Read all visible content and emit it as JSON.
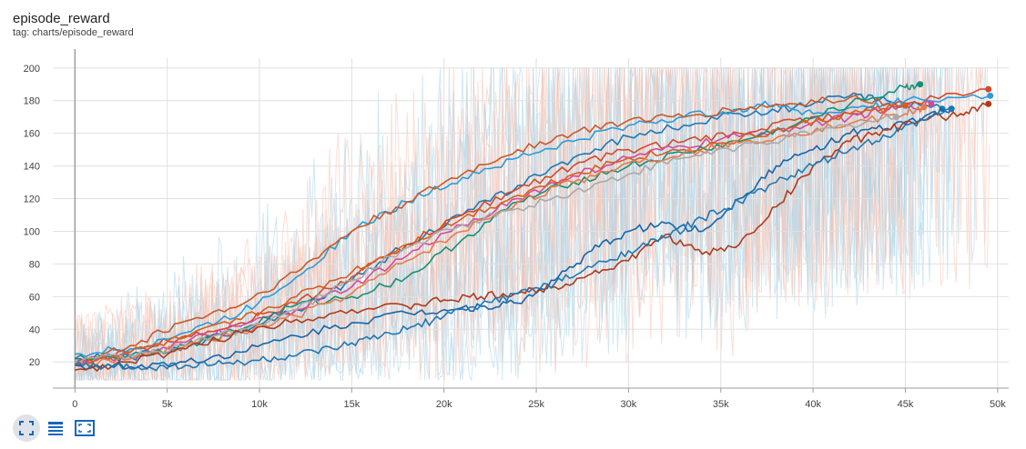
{
  "card": {
    "title": "episode_reward",
    "tag": "tag: charts/episode_reward"
  },
  "toolbar": {
    "buttons": [
      {
        "icon": "fit-domain-icon",
        "active": true
      },
      {
        "icon": "data-table-icon",
        "active": false
      },
      {
        "icon": "fullscreen-icon",
        "active": false
      }
    ]
  },
  "chart_data": {
    "type": "line",
    "title": "episode_reward",
    "xlabel": "",
    "ylabel": "",
    "xlim": [
      -1200,
      50600
    ],
    "ylim": [
      4,
      206
    ],
    "xticks": [
      0,
      5000,
      10000,
      15000,
      20000,
      25000,
      30000,
      35000,
      40000,
      45000,
      50000
    ],
    "xtick_labels": [
      "0",
      "5k",
      "10k",
      "15k",
      "20k",
      "25k",
      "30k",
      "35k",
      "40k",
      "45k",
      "50k"
    ],
    "yticks": [
      20,
      40,
      60,
      80,
      100,
      120,
      140,
      160,
      180,
      200
    ],
    "ytick_labels": [
      "20",
      "40",
      "60",
      "80",
      "100",
      "120",
      "140",
      "160",
      "180",
      "200"
    ],
    "grid": true,
    "legend": "none",
    "raw_band_colors": [
      "#f9c3b3",
      "#a9d6ea"
    ],
    "series": [
      {
        "color": "#1f77b4",
        "x": [
          0,
          3000,
          6000,
          9000,
          12000,
          15000,
          18000,
          21000,
          24000,
          27000,
          30000,
          33000,
          36000,
          39000,
          42000,
          44000,
          47000
        ],
        "y": [
          22,
          23,
          30,
          40,
          52,
          70,
          92,
          110,
          128,
          145,
          158,
          165,
          172,
          176,
          183,
          180,
          175
        ]
      },
      {
        "color": "#d2492b",
        "x": [
          0,
          3000,
          6000,
          9000,
          12000,
          15000,
          18000,
          21000,
          24000,
          27000,
          30000,
          33000,
          36000,
          39000,
          42000,
          45000,
          49500
        ],
        "y": [
          20,
          26,
          36,
          44,
          56,
          72,
          92,
          110,
          126,
          140,
          150,
          155,
          160,
          168,
          172,
          178,
          187
        ]
      },
      {
        "color": "#2b9cd8",
        "x": [
          0,
          3000,
          6000,
          9000,
          12000,
          15000,
          18000,
          21000,
          24000,
          27000,
          30000,
          33000,
          36000,
          38000,
          40000,
          43000,
          45000,
          49600
        ],
        "y": [
          25,
          28,
          38,
          50,
          72,
          100,
          118,
          133,
          145,
          155,
          165,
          170,
          175,
          178,
          172,
          176,
          180,
          183
        ]
      },
      {
        "color": "#c65a2c",
        "x": [
          0,
          3000,
          6000,
          9000,
          12000,
          15000,
          18000,
          21000,
          24000,
          27000,
          30000,
          33000,
          36000,
          39000,
          42000,
          45000
        ],
        "y": [
          18,
          30,
          45,
          55,
          75,
          100,
          118,
          135,
          150,
          160,
          168,
          170,
          175,
          178,
          182,
          177
        ]
      },
      {
        "color": "#d44a9a",
        "x": [
          0,
          3000,
          6000,
          9000,
          12000,
          15000,
          18000,
          21000,
          24000,
          27000,
          30000,
          33000,
          36000,
          39000,
          42000,
          44000,
          46400
        ],
        "y": [
          20,
          24,
          32,
          42,
          52,
          66,
          85,
          104,
          120,
          134,
          145,
          152,
          158,
          164,
          170,
          174,
          178
        ]
      },
      {
        "color": "#14907a",
        "x": [
          0,
          3000,
          6000,
          9000,
          12000,
          15000,
          18000,
          21000,
          24000,
          27000,
          30000,
          33000,
          36000,
          39000,
          42000,
          45000,
          45800
        ],
        "y": [
          22,
          24,
          30,
          40,
          55,
          60,
          72,
          95,
          118,
          130,
          140,
          148,
          155,
          165,
          178,
          188,
          190
        ]
      },
      {
        "color": "#d55e1e",
        "x": [
          0,
          3000,
          6000,
          9000,
          12000,
          15000,
          18000,
          21000,
          24000,
          27000,
          30000,
          33000,
          36000,
          39000,
          42000,
          45000
        ],
        "y": [
          20,
          26,
          35,
          46,
          60,
          75,
          92,
          108,
          122,
          135,
          145,
          150,
          156,
          164,
          172,
          177
        ]
      },
      {
        "color": "#e87a48",
        "x": [
          0,
          3000,
          6000,
          9000,
          12000,
          15000,
          18000,
          21000,
          24000,
          27000,
          30000,
          33000,
          36000,
          39000,
          42000,
          45000,
          46000
        ],
        "y": [
          18,
          22,
          30,
          38,
          48,
          62,
          82,
          100,
          118,
          130,
          142,
          148,
          154,
          160,
          166,
          172,
          176
        ]
      },
      {
        "color": "#a9a9a9",
        "x": [
          0,
          3000,
          6000,
          9000,
          12000,
          15000,
          18000,
          21000,
          24000,
          27000,
          30000,
          33000,
          36000,
          39000,
          42000,
          44500
        ],
        "y": [
          20,
          24,
          30,
          40,
          52,
          70,
          90,
          104,
          114,
          124,
          135,
          145,
          152,
          158,
          165,
          170
        ]
      },
      {
        "color": "#1565a8",
        "x": [
          0,
          3000,
          6000,
          9000,
          12000,
          15000,
          18000,
          20000,
          22000,
          24000,
          26000,
          28000,
          30000,
          32000,
          34000,
          36000,
          38000,
          40000,
          42000,
          44000,
          46000,
          47500
        ],
        "y": [
          18,
          17,
          20,
          26,
          36,
          44,
          50,
          52,
          54,
          56,
          70,
          88,
          100,
          105,
          100,
          120,
          140,
          150,
          160,
          163,
          170,
          175
        ]
      },
      {
        "color": "#b03a1a",
        "x": [
          0,
          3000,
          6000,
          9000,
          12000,
          15000,
          18000,
          20000,
          22000,
          24000,
          26000,
          28000,
          30000,
          32000,
          34000,
          36000,
          38000,
          40000,
          42000,
          44000,
          46000,
          48000,
          49500
        ],
        "y": [
          15,
          20,
          28,
          38,
          46,
          52,
          54,
          58,
          60,
          62,
          66,
          74,
          82,
          98,
          86,
          92,
          115,
          140,
          155,
          162,
          168,
          172,
          178
        ]
      },
      {
        "color": "#1f77b4",
        "x": [
          0,
          2000,
          4000,
          6000,
          8000,
          10000,
          12000,
          14000,
          16000,
          18000,
          20000,
          22000,
          24000,
          26000,
          28000,
          30000,
          32000,
          34000,
          36000,
          38000,
          40000,
          42000,
          44000,
          46000,
          47500
        ],
        "y": [
          18,
          17,
          17,
          18,
          19,
          21,
          24,
          28,
          34,
          40,
          48,
          55,
          62,
          68,
          78,
          88,
          96,
          108,
          118,
          130,
          140,
          150,
          158,
          168,
          175
        ]
      }
    ]
  }
}
